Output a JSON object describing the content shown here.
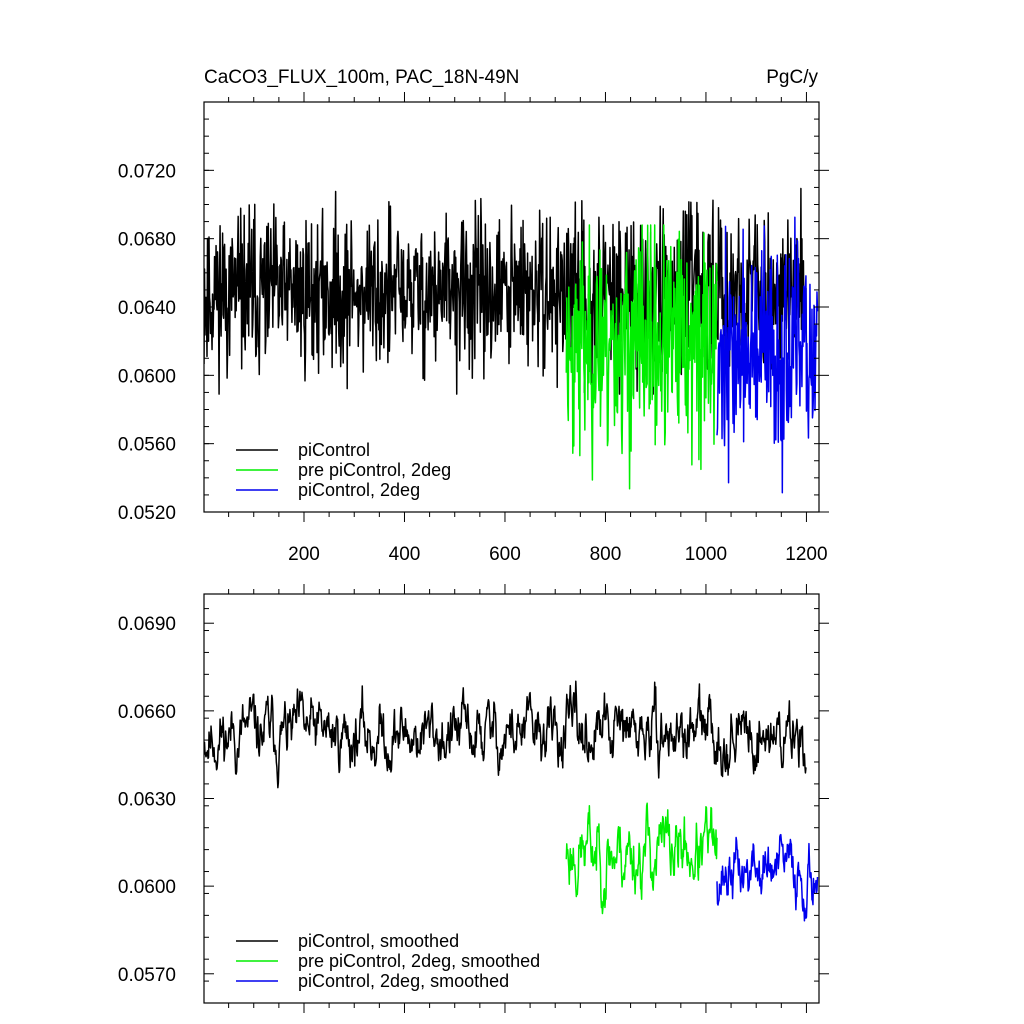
{
  "colors": {
    "piControl": "#000000",
    "pre_2deg": "#00ee00",
    "pi_2deg": "#0000ee",
    "frame": "#000000",
    "background": "#ffffff"
  },
  "chart_data": [
    {
      "type": "line",
      "title_left": "CaCO3_FLUX_100m, PAC_18N-49N",
      "title_right": "PgC/y",
      "xlabel": "",
      "ylabel": "",
      "xlim": [
        1,
        1225
      ],
      "ylim": [
        0.052,
        0.076
      ],
      "x_ticks": [
        200,
        400,
        600,
        800,
        1000,
        1200
      ],
      "x_tick_labels": [
        "200",
        "400",
        "600",
        "800",
        "1000",
        "1200"
      ],
      "y_ticks": [
        0.052,
        0.056,
        0.06,
        0.064,
        0.068,
        0.072
      ],
      "y_tick_labels": [
        "0.0520",
        "0.0560",
        "0.0600",
        "0.0640",
        "0.0680",
        "0.0720"
      ],
      "grid": false,
      "legend_position": "bottom-left",
      "series": [
        {
          "name": "piControl",
          "color_key": "piControl",
          "x_start": 1,
          "x_end": 1200,
          "mean": 0.0648,
          "amp": 0.0023,
          "noise": "rough",
          "seed": 11,
          "min": 0.0589,
          "max": 0.0726
        },
        {
          "name": "pre piControl, 2deg",
          "color_key": "pre_2deg",
          "x_start": 722,
          "x_end": 1022,
          "mean": 0.0618,
          "amp": 0.0032,
          "noise": "rough",
          "seed": 23,
          "min": 0.0529,
          "max": 0.0688
        },
        {
          "name": "piControl, 2deg",
          "color_key": "pi_2deg",
          "x_start": 1022,
          "x_end": 1222,
          "mean": 0.0612,
          "amp": 0.003,
          "noise": "rough",
          "seed": 37,
          "min": 0.0528,
          "max": 0.0699
        }
      ]
    },
    {
      "type": "line",
      "xlabel": "",
      "ylabel": "",
      "xlim": [
        1,
        1225
      ],
      "ylim": [
        0.056,
        0.07
      ],
      "x_ticks": [
        200,
        400,
        600,
        800,
        1000,
        1200
      ],
      "y_ticks": [
        0.057,
        0.06,
        0.063,
        0.066,
        0.069
      ],
      "y_tick_labels": [
        "0.0570",
        "0.0600",
        "0.0630",
        "0.0660",
        "0.0690"
      ],
      "grid": false,
      "legend_position": "bottom-left",
      "series": [
        {
          "name": "piControl, smoothed",
          "color_key": "piControl",
          "x_start": 1,
          "x_end": 1200,
          "mean": 0.0652,
          "amp": 0.0011,
          "noise": "smooth",
          "seed": 11,
          "min": 0.0627,
          "max": 0.0685
        },
        {
          "name": "pre piControl, 2deg, smoothed",
          "color_key": "pre_2deg",
          "x_start": 722,
          "x_end": 1022,
          "mean": 0.0612,
          "amp": 0.0013,
          "noise": "smooth",
          "seed": 23,
          "min": 0.0579,
          "max": 0.0634
        },
        {
          "name": "piControl, 2deg, smoothed",
          "color_key": "pi_2deg",
          "x_start": 1022,
          "x_end": 1222,
          "mean": 0.0605,
          "amp": 0.0011,
          "noise": "smooth",
          "seed": 37,
          "min": 0.0583,
          "max": 0.0632
        }
      ]
    }
  ]
}
